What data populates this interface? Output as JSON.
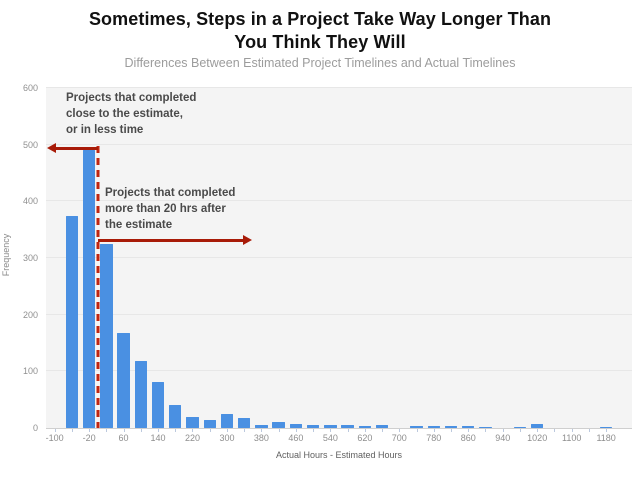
{
  "header": {
    "title_line1": "Sometimes, Steps in a Project Take Way Longer Than",
    "title_line2": "You Think They Will",
    "subtitle": "Differences Between Estimated Project Timelines and Actual Timelines"
  },
  "annotations": {
    "left_of_line": {
      "line1": "Projects that completed",
      "line2": "close to the estimate,",
      "line3": "or in less time"
    },
    "right_of_line": {
      "line1": "Projects that completed",
      "line2": "more than 20 hrs after",
      "line3": "the estimate"
    }
  },
  "chart_data": {
    "type": "bar",
    "title": "Sometimes, Steps in a Project Take Way Longer Than You Think They Will",
    "subtitle": "Differences Between Estimated Project Timelines and Actual Timelines",
    "xlabel": "Actual Hours - Estimated Hours",
    "ylabel": "Frequency",
    "ylim": [
      0,
      600
    ],
    "y_tick_step": 100,
    "grid": true,
    "categories": [
      -100,
      -60,
      -20,
      20,
      60,
      100,
      140,
      180,
      220,
      260,
      300,
      340,
      380,
      420,
      460,
      500,
      540,
      580,
      620,
      660,
      700,
      740,
      780,
      820,
      860,
      900,
      940,
      980,
      1020,
      1060,
      1100,
      1140,
      1180
    ],
    "values": [
      0,
      375,
      490,
      325,
      168,
      118,
      81,
      40,
      20,
      15,
      25,
      18,
      5,
      11,
      7,
      5,
      5,
      6,
      3,
      5,
      0,
      4,
      3,
      3,
      4,
      1,
      0,
      2,
      7,
      0,
      0,
      0,
      2
    ],
    "x_label_every": 2,
    "divider_value": 20,
    "divider_boundary_index": 3,
    "bar_color": "#4a90e2",
    "plot_bg_color": "#f4f4f4",
    "divider_color": "#c02511",
    "arrow_color": "#a81b08",
    "annotation_text_color": "#4a4a4a"
  }
}
